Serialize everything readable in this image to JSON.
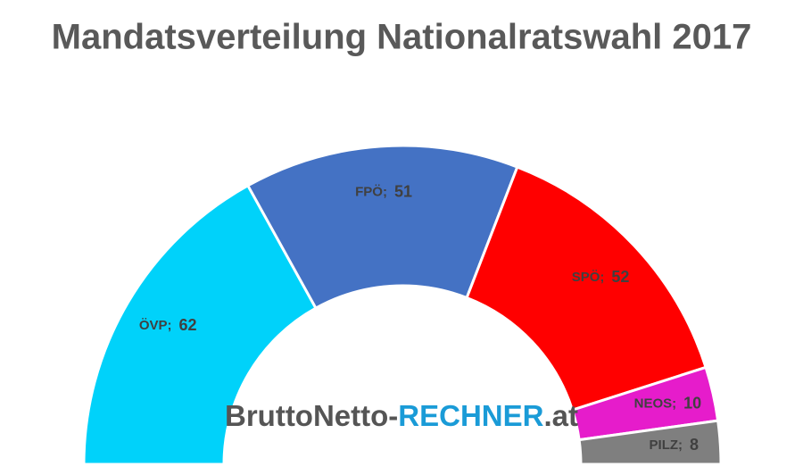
{
  "chart_data": {
    "type": "semi-donut",
    "title": "Mandatsverteilung Nationalratswahl 2017",
    "categories": [
      "ÖVP",
      "FPÖ",
      "SPÖ",
      "NEOS",
      "PILZ"
    ],
    "values": [
      62,
      51,
      52,
      10,
      8
    ],
    "colors": [
      "#00d2fa",
      "#4472c4",
      "#ff0000",
      "#e61ccb",
      "#7f7f7f"
    ],
    "label_separator": ";",
    "watermark": [
      "BruttoNetto-",
      "RECHNER",
      ".at"
    ]
  }
}
